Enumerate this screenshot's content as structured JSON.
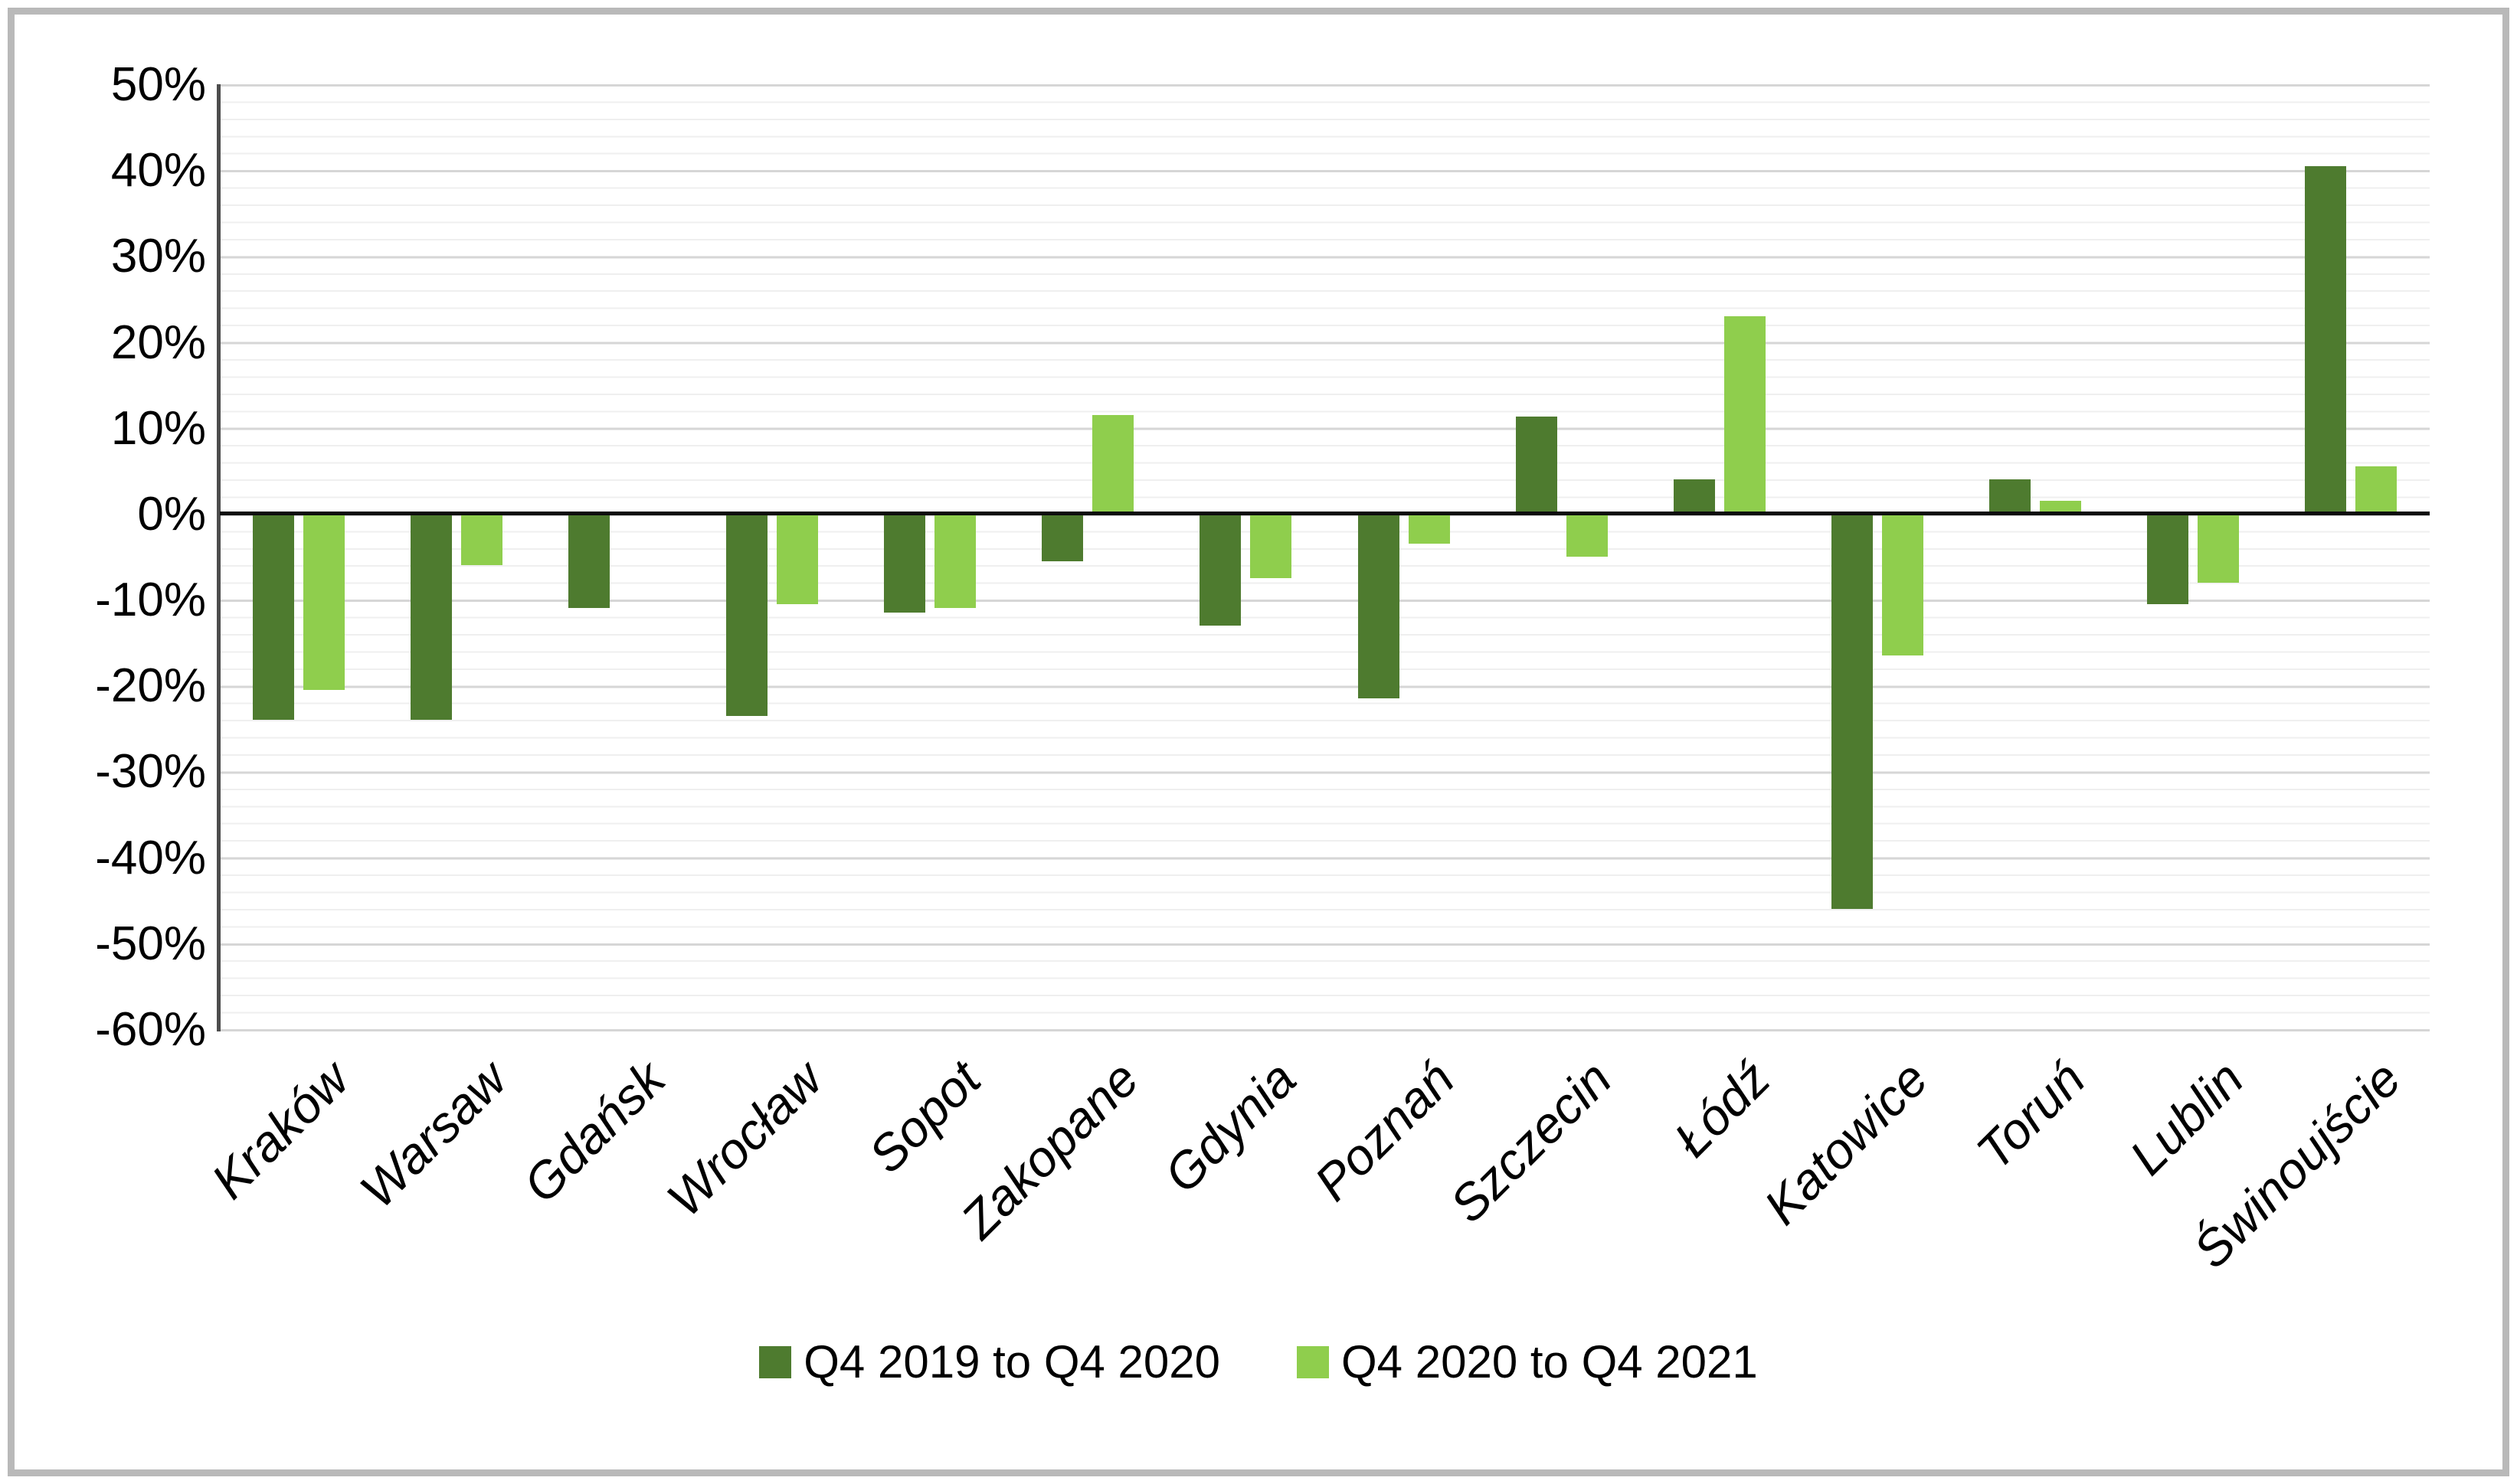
{
  "chart_data": {
    "type": "bar",
    "categories": [
      "Kraków",
      "Warsaw",
      "Gdańsk",
      "Wrocław",
      "Sopot",
      "Zakopane",
      "Gdynia",
      "Poznań",
      "Szczecin",
      "Łódź",
      "Katowice",
      "Toruń",
      "Lublin",
      "Świnoujście"
    ],
    "series": [
      {
        "name": "Q4 2019 to Q4 2020",
        "color": "#4e7b2f",
        "values": [
          -24,
          -24,
          -11,
          -23.5,
          -11.5,
          -5.5,
          -13,
          -21.5,
          11.3,
          4,
          -46,
          4,
          -10.5,
          40.5
        ]
      },
      {
        "name": "Q4 2020 to Q4 2021",
        "color": "#8fce4d",
        "values": [
          -20.5,
          -6,
          0,
          -10.5,
          -11,
          11.5,
          -7.5,
          -3.5,
          -5,
          23,
          -16.5,
          1.5,
          -8,
          5.5
        ]
      }
    ],
    "title": "",
    "xlabel": "",
    "ylabel": "",
    "ylim": [
      -60,
      50
    ],
    "y_tick_labels": [
      "50%",
      "40%",
      "30%",
      "20%",
      "10%",
      "0%",
      "-10%",
      "-20%",
      "-30%",
      "-40%",
      "-50%",
      "-60%"
    ],
    "grid": {
      "minor_step_pct": 2,
      "major_step_pct": 10
    },
    "legend_position": "bottom",
    "unit": "%"
  },
  "colors": {
    "zero_line": "#0d0d0d",
    "axis_line": "#4d4d4d",
    "major_grid": "#d6d6d6",
    "minor_grid": "#efefef",
    "frame_border": "#b9b9b9",
    "background": "#ffffff"
  }
}
